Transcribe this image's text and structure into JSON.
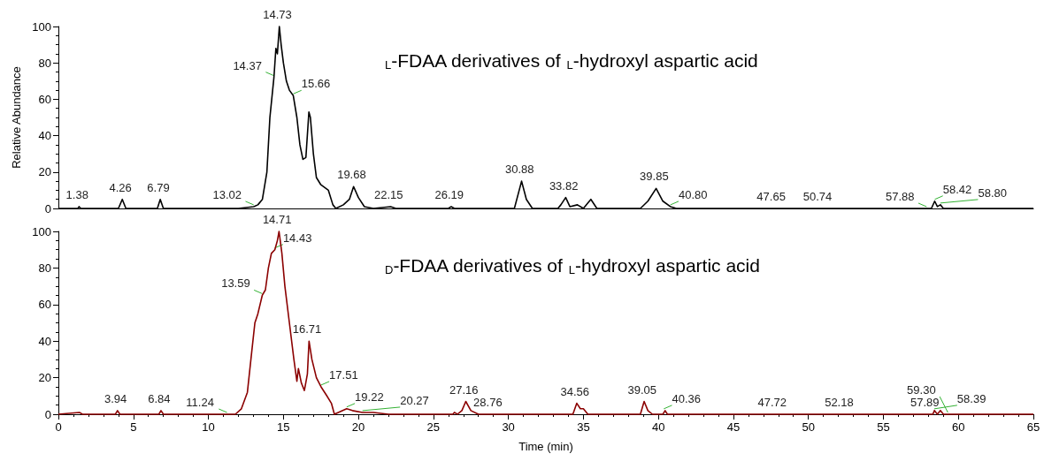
{
  "chart_data": [
    {
      "type": "line",
      "title": "$_{L}$-FDAA derivatives of $_{L}$-hydroxyl aspartic acid",
      "ylabel": "Relative Abundance",
      "marker": "none",
      "tick_labels": "y",
      "xlim": [
        0,
        65
      ],
      "xticks": [
        0,
        5,
        10,
        15,
        20,
        25,
        30,
        35,
        40,
        45,
        50,
        55,
        60,
        65
      ],
      "ylim": [
        0,
        100
      ],
      "yticks": [
        0,
        20,
        40,
        60,
        80,
        100
      ],
      "series": [
        {
          "color": "#000000",
          "x": [
            0,
            1.3,
            1.38,
            1.5,
            4.0,
            4.26,
            4.5,
            6.6,
            6.79,
            7.0,
            12,
            13.02,
            13.3,
            13.6,
            13.9,
            14.1,
            14.37,
            14.5,
            14.6,
            14.73,
            14.85,
            15.0,
            15.2,
            15.4,
            15.66,
            15.9,
            16.1,
            16.3,
            16.5,
            16.7,
            16.8,
            17.0,
            17.2,
            17.5,
            18.0,
            18.3,
            18.5,
            19.0,
            19.4,
            19.68,
            20.0,
            20.4,
            21,
            22.15,
            22.5,
            26,
            26.19,
            26.4,
            30.4,
            30.88,
            31.2,
            31.6,
            33.3,
            33.5,
            33.82,
            34.1,
            34.6,
            35.0,
            35.3,
            35.5,
            35.9,
            38.8,
            39.3,
            39.85,
            40.3,
            40.8,
            41.2,
            58.2,
            58.42,
            58.6,
            58.8,
            59.0,
            65
          ],
          "values": [
            0,
            0,
            1,
            0,
            0,
            5,
            0,
            0,
            5,
            0,
            0,
            1,
            2,
            5,
            20,
            50,
            72,
            88,
            85,
            100,
            90,
            80,
            70,
            65,
            62,
            50,
            35,
            27,
            28,
            53,
            50,
            30,
            17,
            13,
            10,
            2,
            0,
            2,
            5,
            12,
            6,
            1,
            0,
            1,
            0,
            0,
            1,
            0,
            0,
            15,
            5,
            0,
            0,
            2,
            6,
            1,
            2,
            0,
            3,
            5,
            0,
            0,
            4,
            11,
            4,
            1,
            0,
            0,
            4,
            1,
            2,
            0,
            0
          ]
        }
      ],
      "annotations": [
        {
          "text": "1.38",
          "x": 1.38,
          "y": 1
        },
        {
          "text": "4.26",
          "x": 4.26,
          "y": 5
        },
        {
          "text": "6.79",
          "x": 6.79,
          "y": 5
        },
        {
          "text": "13.02",
          "x": 13.02,
          "y": 1
        },
        {
          "text": "14.73",
          "x": 14.73,
          "y": 100
        },
        {
          "text": "14.37",
          "x": 14.37,
          "y": 72
        },
        {
          "text": "15.66",
          "x": 15.66,
          "y": 62
        },
        {
          "text": "19.68",
          "x": 19.68,
          "y": 12
        },
        {
          "text": "22.15",
          "x": 22.15,
          "y": 1
        },
        {
          "text": "26.19",
          "x": 26.19,
          "y": 1
        },
        {
          "text": "30.88",
          "x": 30.88,
          "y": 15
        },
        {
          "text": "33.82",
          "x": 33.82,
          "y": 6
        },
        {
          "text": "39.85",
          "x": 39.85,
          "y": 11
        },
        {
          "text": "40.80",
          "x": 40.8,
          "y": 1
        },
        {
          "text": "47.65",
          "x": 47.65,
          "y": 0
        },
        {
          "text": "50.74",
          "x": 50.74,
          "y": 0
        },
        {
          "text": "57.88",
          "x": 57.88,
          "y": 0
        },
        {
          "text": "58.42",
          "x": 58.42,
          "y": 4
        },
        {
          "text": "58.80",
          "x": 58.8,
          "y": 2
        }
      ]
    },
    {
      "type": "line",
      "title": "$_{D}$-FDAA derivatives of $_{L}$-hydroxyl aspartic acid",
      "xlabel": "Time (min)",
      "marker": "none",
      "xlim": [
        0,
        65
      ],
      "xticks": [
        0,
        5,
        10,
        15,
        20,
        25,
        30,
        35,
        40,
        45,
        50,
        55,
        60,
        65
      ],
      "ylim": [
        0,
        100
      ],
      "yticks": [
        0,
        20,
        40,
        60,
        80,
        100
      ],
      "series": [
        {
          "color": "#8b0000",
          "x": [
            0,
            1.4,
            1.6,
            3.8,
            3.94,
            4.1,
            6.7,
            6.84,
            7.0,
            11.24,
            11.8,
            12.2,
            12.6,
            12.9,
            13.1,
            13.3,
            13.59,
            13.8,
            14.0,
            14.2,
            14.43,
            14.6,
            14.71,
            14.9,
            15.1,
            15.4,
            15.7,
            15.9,
            16.0,
            16.2,
            16.4,
            16.6,
            16.71,
            16.9,
            17.2,
            17.51,
            17.9,
            18.2,
            18.4,
            19.22,
            19.6,
            20.27,
            21,
            22,
            26.3,
            26.4,
            26.6,
            26.9,
            27.16,
            27.5,
            28,
            34.3,
            34.56,
            34.8,
            35.0,
            35.3,
            38.8,
            39.05,
            39.3,
            39.6,
            40.3,
            40.45,
            40.6,
            58.3,
            58.4,
            58.6,
            58.8,
            59.0,
            65
          ],
          "values": [
            0,
            1,
            0,
            0,
            2,
            0,
            0,
            2,
            0,
            0,
            0,
            3,
            12,
            35,
            50,
            55,
            65,
            68,
            80,
            88,
            90,
            95,
            100,
            88,
            70,
            50,
            30,
            18,
            25,
            17,
            13,
            22,
            40,
            30,
            20,
            15,
            10,
            6,
            0,
            3,
            2,
            1,
            1,
            0,
            0,
            1,
            0,
            2,
            7,
            2,
            0,
            0,
            6,
            3,
            3,
            0,
            0,
            7,
            2,
            0,
            0,
            2,
            0,
            0,
            2,
            0,
            2,
            0,
            0
          ]
        }
      ],
      "annotations": [
        {
          "text": "3.94",
          "x": 3.94,
          "y": 2
        },
        {
          "text": "6.84",
          "x": 6.84,
          "y": 2
        },
        {
          "text": "11.24",
          "x": 11.24,
          "y": 0
        },
        {
          "text": "14.71",
          "x": 14.71,
          "y": 100
        },
        {
          "text": "14.43",
          "x": 14.43,
          "y": 90
        },
        {
          "text": "13.59",
          "x": 13.59,
          "y": 65
        },
        {
          "text": "16.71",
          "x": 16.71,
          "y": 40
        },
        {
          "text": "17.51",
          "x": 17.51,
          "y": 15
        },
        {
          "text": "19.22",
          "x": 19.22,
          "y": 3
        },
        {
          "text": "20.27",
          "x": 20.27,
          "y": 1
        },
        {
          "text": "27.16",
          "x": 27.16,
          "y": 7
        },
        {
          "text": "28.76",
          "x": 28.76,
          "y": 0
        },
        {
          "text": "34.56",
          "x": 34.56,
          "y": 6
        },
        {
          "text": "39.05",
          "x": 39.05,
          "y": 7
        },
        {
          "text": "40.36",
          "x": 40.36,
          "y": 2
        },
        {
          "text": "47.72",
          "x": 47.72,
          "y": 0
        },
        {
          "text": "52.18",
          "x": 52.18,
          "y": 0
        },
        {
          "text": "57.89",
          "x": 57.89,
          "y": 0
        },
        {
          "text": "58.39",
          "x": 58.39,
          "y": 2
        },
        {
          "text": "59.30",
          "x": 59.3,
          "y": 0
        }
      ]
    }
  ]
}
